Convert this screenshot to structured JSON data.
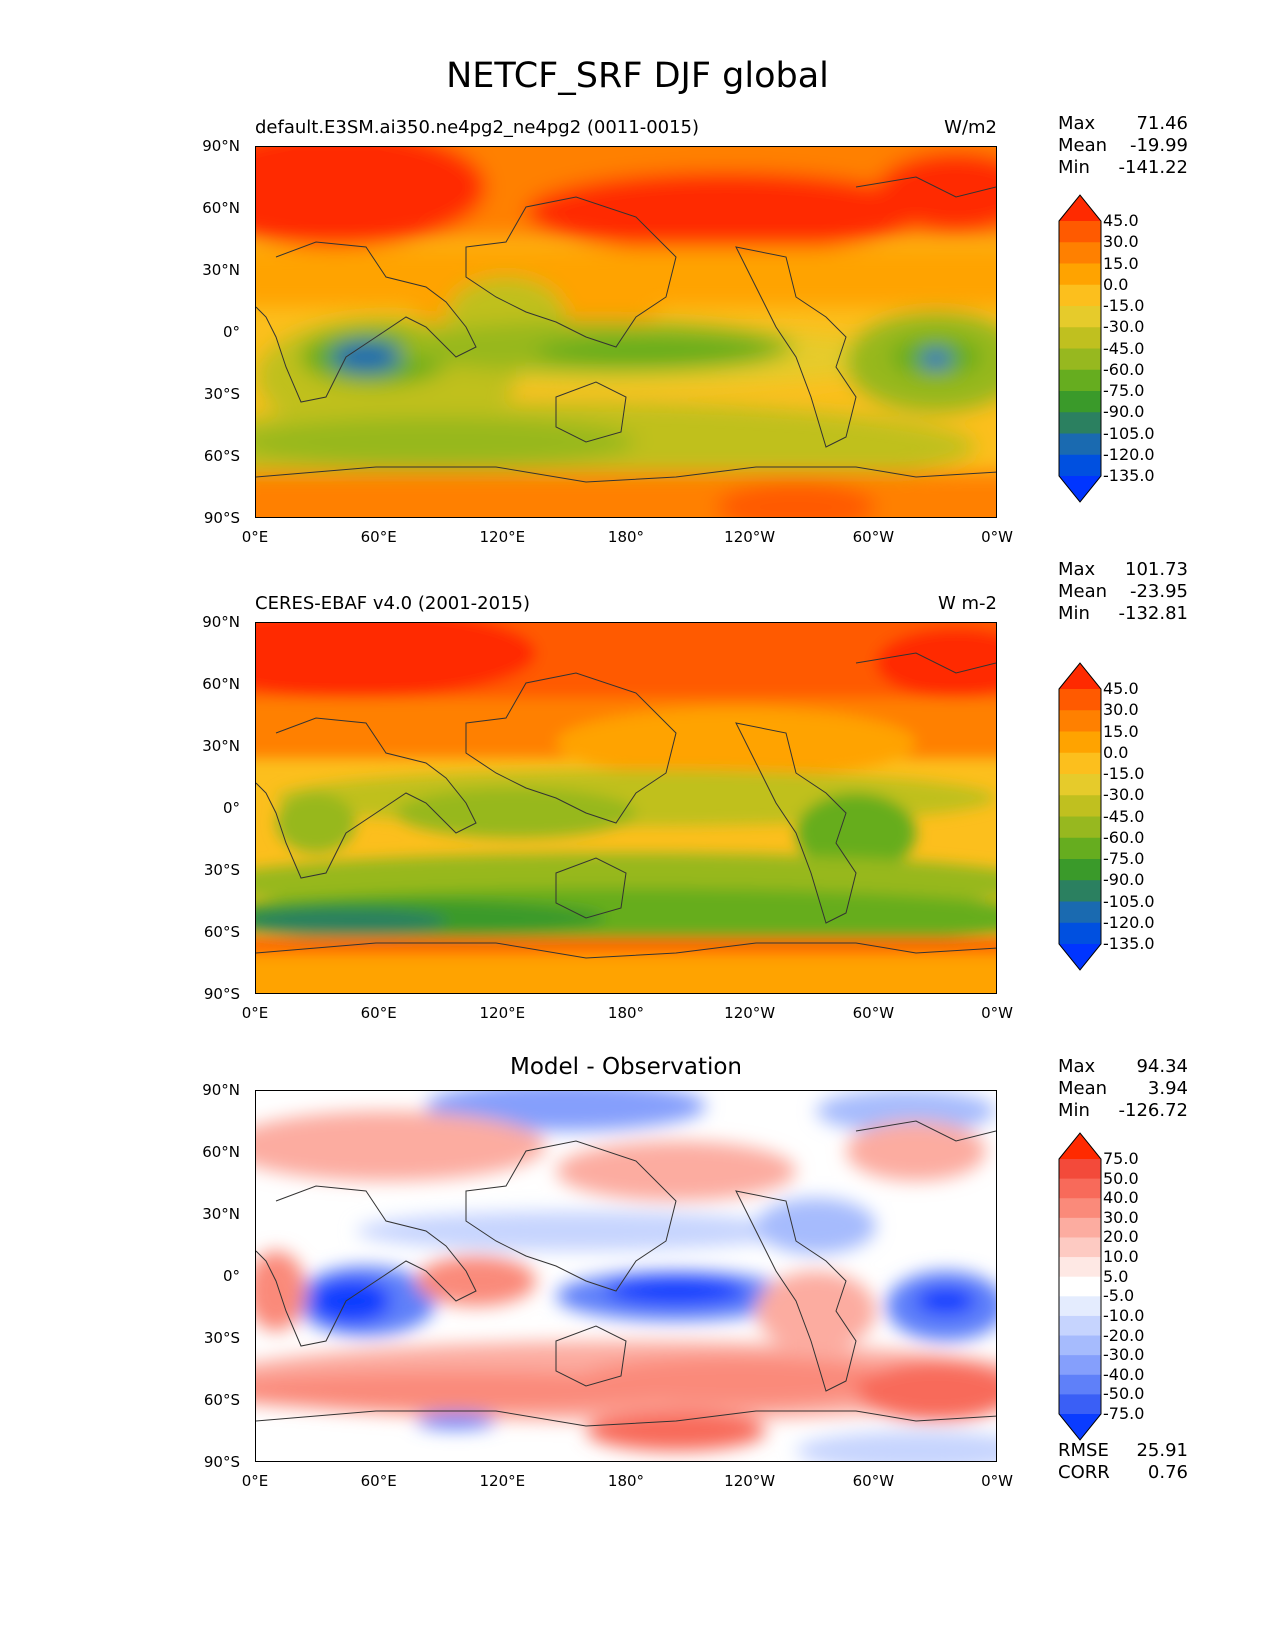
{
  "figure": {
    "title": "NETCF_SRF DJF global"
  },
  "lat_ticks": [
    "90°N",
    "60°N",
    "30°N",
    "0°",
    "30°S",
    "60°S",
    "90°S"
  ],
  "lon_ticks": [
    "0°E",
    "60°E",
    "120°E",
    "180°",
    "120°W",
    "60°W",
    "0°W"
  ],
  "panels": [
    {
      "title_left": "default.E3SM.ai350.ne4pg2_ne4pg2 (0011-0015)",
      "title_right": "W/m2",
      "stats": {
        "max_label": "Max",
        "max": "71.46",
        "mean_label": "Mean",
        "mean": "-19.99",
        "min_label": "Min",
        "min": "-141.22"
      },
      "colorbar": {
        "labels": [
          "45.0",
          "30.0",
          "15.0",
          "0.0",
          "-15.0",
          "-30.0",
          "-45.0",
          "-60.0",
          "-75.0",
          "-90.0",
          "-105.0",
          "-120.0",
          "-135.0"
        ],
        "colors": [
          "#ff2a00",
          "#ff5a00",
          "#ff8000",
          "#ffa300",
          "#fcbf1d",
          "#e6cb2b",
          "#c0c01f",
          "#97b81f",
          "#66ad1f",
          "#3a9a2a",
          "#2b8060",
          "#1a6ab0",
          "#0050e0",
          "#0035ff"
        ]
      }
    },
    {
      "title_left": "CERES-EBAF v4.0 (2001-2015)",
      "title_right": "W m-2",
      "stats": {
        "max_label": "Max",
        "max": "101.73",
        "mean_label": "Mean",
        "mean": "-23.95",
        "min_label": "Min",
        "min": "-132.81"
      },
      "colorbar": {
        "labels": [
          "45.0",
          "30.0",
          "15.0",
          "0.0",
          "-15.0",
          "-30.0",
          "-45.0",
          "-60.0",
          "-75.0",
          "-90.0",
          "-105.0",
          "-120.0",
          "-135.0"
        ],
        "colors": [
          "#ff2a00",
          "#ff5a00",
          "#ff8000",
          "#ffa300",
          "#fcbf1d",
          "#e6cb2b",
          "#c0c01f",
          "#97b81f",
          "#66ad1f",
          "#3a9a2a",
          "#2b8060",
          "#1a6ab0",
          "#0050e0",
          "#0035ff"
        ]
      }
    },
    {
      "title_center": "Model - Observation",
      "stats": {
        "max_label": "Max",
        "max": "94.34",
        "mean_label": "Mean",
        "mean": "3.94",
        "min_label": "Min",
        "min": "-126.72"
      },
      "colorbar": {
        "labels": [
          "75.0",
          "50.0",
          "40.0",
          "30.0",
          "20.0",
          "10.0",
          "5.0",
          "-5.0",
          "-10.0",
          "-20.0",
          "-30.0",
          "-40.0",
          "-50.0",
          "-75.0"
        ],
        "colors": [
          "#ff2a00",
          "#f34a3a",
          "#f86a5a",
          "#fa8a7a",
          "#fcaca0",
          "#fdcac2",
          "#fee8e4",
          "#ffffff",
          "#e4ecfe",
          "#c6d4fe",
          "#a6bbfd",
          "#859ffc",
          "#5f80f9",
          "#3a5ff6",
          "#0a3cff"
        ]
      },
      "rmse_label": "RMSE",
      "rmse": "25.91",
      "corr_label": "CORR",
      "corr": "0.76"
    }
  ]
}
